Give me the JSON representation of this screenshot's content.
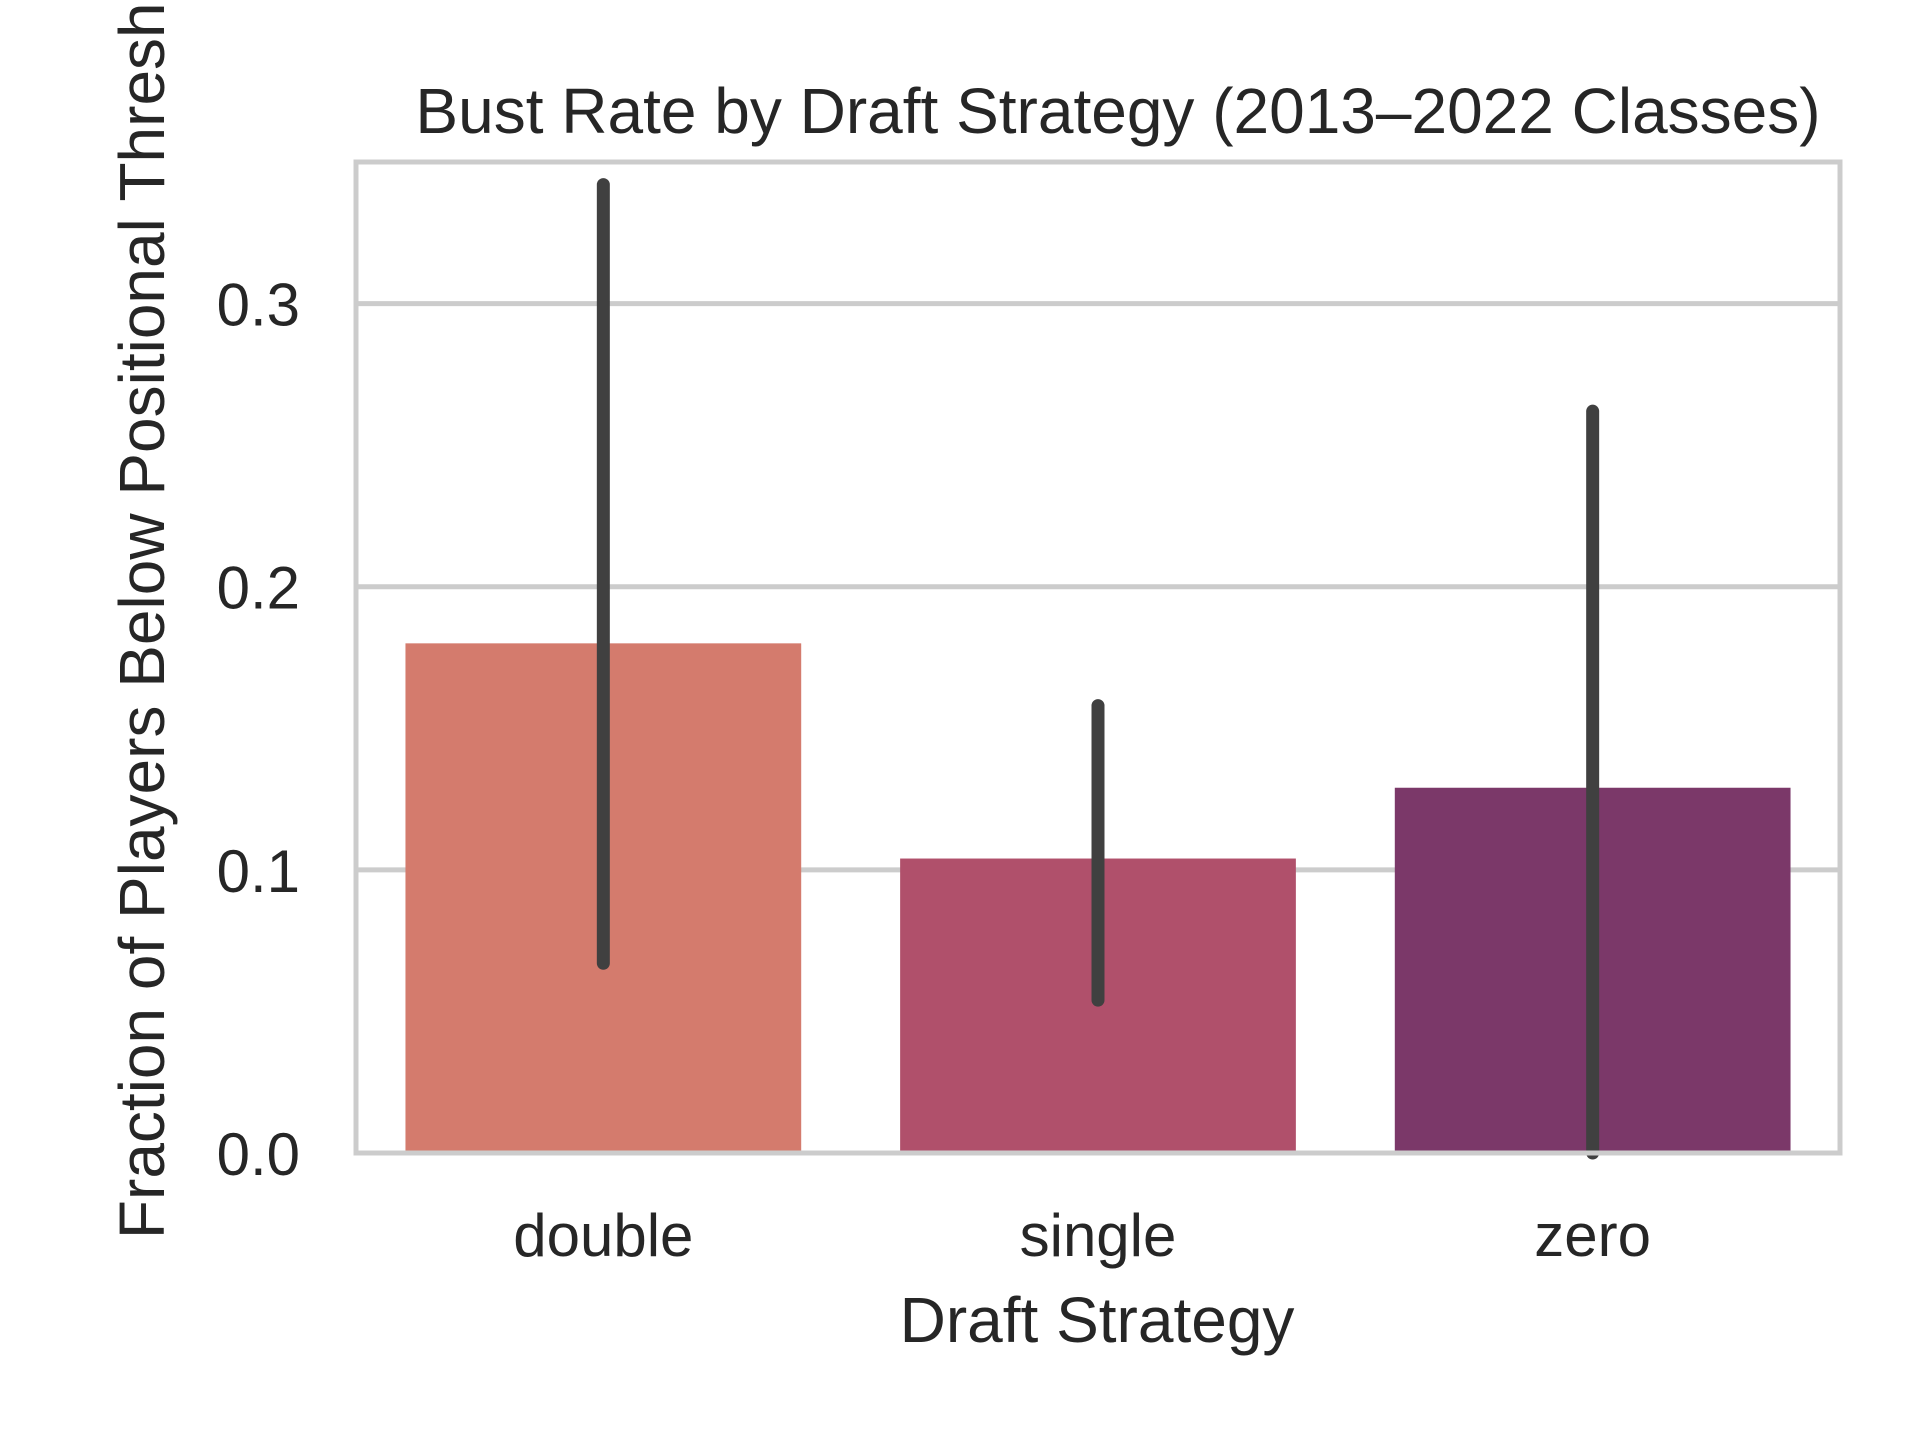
{
  "chart_data": {
    "type": "bar",
    "title": "Bust Rate by Draft Strategy (2013–2022 Classes)",
    "xlabel": "Draft Strategy",
    "ylabel": "Fraction of Players Below Positional Threshold",
    "categories": [
      "double",
      "single",
      "zero"
    ],
    "values": [
      0.18,
      0.104,
      0.129
    ],
    "error_bars": [
      {
        "low": 0.067,
        "high": 0.342
      },
      {
        "low": 0.054,
        "high": 0.158
      },
      {
        "low": 0.0,
        "high": 0.262
      }
    ],
    "ylim": [
      0,
      0.35
    ],
    "yticks": [
      0.0,
      0.1,
      0.2,
      0.3
    ],
    "ytick_labels": [
      "0.0",
      "0.1",
      "0.2",
      "0.3"
    ],
    "grid": "y",
    "colors": [
      "#d47b6d",
      "#b0506b",
      "#7b3869"
    ],
    "errorbar_color": "#404040",
    "frame_color": "#cccccc"
  }
}
